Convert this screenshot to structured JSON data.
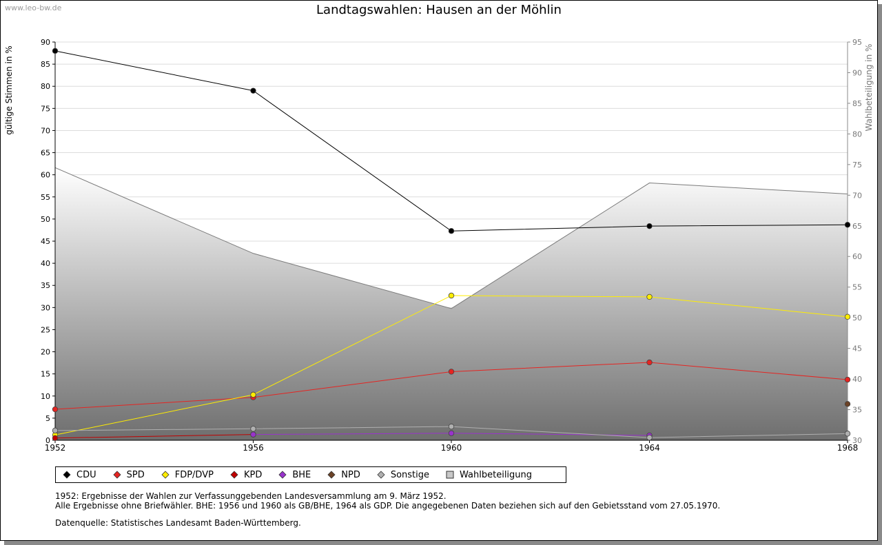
{
  "watermark": "www.leo-bw.de",
  "chart_data": {
    "type": "line",
    "title": "Landtagswahlen: Hausen an der Möhlin",
    "xlabel": "",
    "ylabel": "gültige Stimmen in %",
    "ylabel_right": "Wahlbeteiligung in %",
    "x": [
      "1952",
      "1956",
      "1960",
      "1964",
      "1968"
    ],
    "ylim": [
      0,
      90
    ],
    "ylim_right": [
      30,
      95
    ],
    "yticks": [
      0,
      5,
      10,
      15,
      20,
      25,
      30,
      35,
      40,
      45,
      50,
      55,
      60,
      65,
      70,
      75,
      80,
      85,
      90
    ],
    "yticks_right": [
      30,
      35,
      40,
      45,
      50,
      55,
      60,
      65,
      70,
      75,
      80,
      85,
      90,
      95
    ],
    "grid": true,
    "legend_position": "bottom",
    "series": [
      {
        "name": "CDU",
        "color": "#000000",
        "values": [
          88.0,
          79.0,
          47.3,
          48.4,
          48.7
        ]
      },
      {
        "name": "SPD",
        "color": "#e52421",
        "values": [
          7.0,
          9.7,
          15.5,
          17.6,
          13.7
        ]
      },
      {
        "name": "FDP/DVP",
        "color": "#ffed00",
        "values": [
          1.2,
          10.3,
          32.7,
          32.4,
          27.9
        ]
      },
      {
        "name": "KPD",
        "color": "#c00000",
        "values": [
          0.5,
          1.3,
          null,
          null,
          null
        ]
      },
      {
        "name": "BHE",
        "color": "#9933cc",
        "values": [
          null,
          1.3,
          1.6,
          1.1,
          null
        ]
      },
      {
        "name": "NPD",
        "color": "#6b4226",
        "values": [
          null,
          null,
          null,
          null,
          8.2
        ]
      },
      {
        "name": "Sonstige",
        "color": "#b0b0b0",
        "values": [
          2.2,
          2.6,
          3.1,
          0.6,
          1.5
        ]
      }
    ],
    "turnout": {
      "name": "Wahlbeteiligung",
      "values": [
        74.5,
        60.5,
        51.5,
        72.0,
        70.2
      ]
    }
  },
  "notes": [
    "1952: Ergebnisse der Wahlen zur Verfassunggebenden Landesversammlung am 9. März 1952.",
    "Alle Ergebnisse ohne Briefwähler. BHE: 1956 und 1960 als GB/BHE, 1964 als GDP. Die angegebenen Daten beziehen sich auf den Gebietsstand vom 27.05.1970."
  ],
  "source": "Datenquelle: Statistisches Landesamt Baden-Württemberg."
}
